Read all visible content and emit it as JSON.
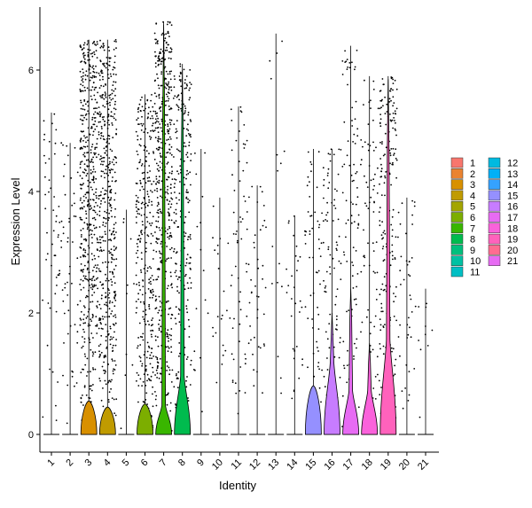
{
  "chart_data": {
    "type": "violin",
    "title": "",
    "xlabel": "Identity",
    "ylabel": "Expression Level",
    "ylim": [
      -0.35,
      6.8
    ],
    "yticks": [
      0,
      2,
      4,
      6
    ],
    "categories": [
      "1",
      "2",
      "3",
      "4",
      "5",
      "6",
      "7",
      "8",
      "9",
      "10",
      "11",
      "12",
      "13",
      "14",
      "15",
      "16",
      "17",
      "18",
      "19",
      "20",
      "21"
    ],
    "max_values": [
      5.3,
      4.8,
      6.5,
      6.5,
      3.7,
      5.6,
      6.8,
      6.1,
      4.7,
      3.9,
      5.4,
      4.1,
      6.6,
      3.6,
      4.7,
      4.7,
      6.4,
      5.9,
      5.9,
      3.9,
      2.4
    ],
    "violin_body_height": [
      0.02,
      0.02,
      0.55,
      0.45,
      0.0,
      0.5,
      6.75,
      6.0,
      0.0,
      0.0,
      0.0,
      0.0,
      0.0,
      0.0,
      0.8,
      2.0,
      2.4,
      1.5,
      5.85,
      0.0,
      0.0
    ],
    "violin_base_height": [
      0.02,
      0.02,
      0.55,
      0.45,
      0.0,
      0.5,
      0.4,
      0.8,
      0.0,
      0.0,
      0.0,
      0.0,
      0.0,
      0.0,
      0.8,
      1.0,
      0.6,
      0.6,
      1.3,
      0.0,
      0.0
    ],
    "point_density": [
      0.1,
      0.1,
      0.95,
      0.9,
      0.02,
      0.6,
      0.95,
      0.5,
      0.03,
      0.04,
      0.12,
      0.08,
      0.03,
      0.06,
      0.12,
      0.18,
      0.18,
      0.15,
      0.4,
      0.08,
      0.02
    ],
    "colors": [
      "#F8766D",
      "#EA8331",
      "#D89000",
      "#C09B00",
      "#A3A500",
      "#7CAE00",
      "#39B600",
      "#00BB4E",
      "#00BF7D",
      "#00C1A3",
      "#00BFC4",
      "#00BAE0",
      "#00B0F6",
      "#35A2FF",
      "#9590FF",
      "#C77CFF",
      "#E76BF3",
      "#FA62DB",
      "#FF62BC",
      "#FF6C91",
      "#E76BF3"
    ],
    "legend": {
      "placement": "right",
      "entries": [
        "1",
        "2",
        "3",
        "4",
        "5",
        "6",
        "7",
        "8",
        "9",
        "10",
        "11",
        "12",
        "13",
        "14",
        "15",
        "16",
        "17",
        "18",
        "19",
        "20",
        "21"
      ]
    }
  }
}
